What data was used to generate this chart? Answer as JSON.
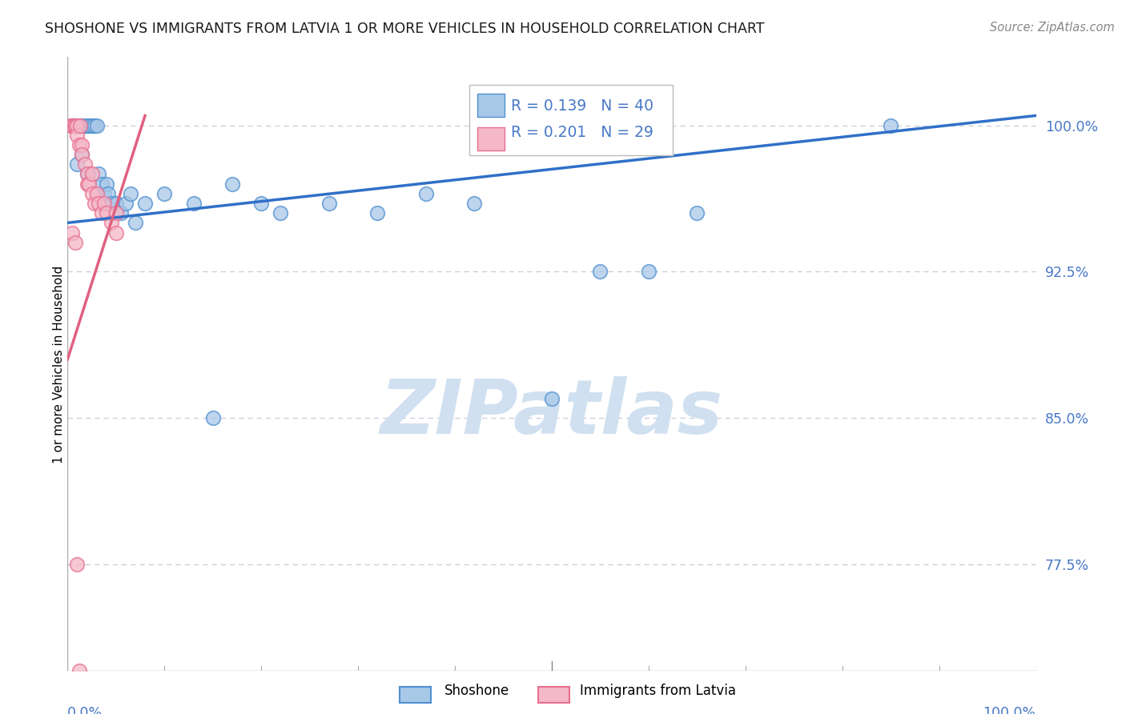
{
  "title": "SHOSHONE VS IMMIGRANTS FROM LATVIA 1 OR MORE VEHICLES IN HOUSEHOLD CORRELATION CHART",
  "source": "Source: ZipAtlas.com",
  "ylabel": "1 or more Vehicles in Household",
  "xlim": [
    0.0,
    100.0
  ],
  "ylim": [
    72.0,
    103.5
  ],
  "yticks": [
    77.5,
    85.0,
    92.5,
    100.0
  ],
  "ytick_labels": [
    "77.5%",
    "85.0%",
    "92.5%",
    "100.0%"
  ],
  "blue_R": 0.139,
  "blue_N": 40,
  "pink_R": 0.201,
  "pink_N": 29,
  "legend_label_blue": "Shoshone",
  "legend_label_pink": "Immigrants from Latvia",
  "blue_dot_color": "#a8c8e8",
  "pink_dot_color": "#f4b8c8",
  "blue_edge_color": "#5090d0",
  "pink_edge_color": "#e87090",
  "blue_line_color": "#3070c8",
  "pink_line_color": "#e06080",
  "watermark_color": "#d0e0f0",
  "axis_tick_color": "#4878c8",
  "title_color": "#1a1a1a",
  "source_color": "#888888",
  "grid_color": "#c8c8dc",
  "blue_trend_x": [
    0.0,
    100.0
  ],
  "blue_trend_y": [
    95.0,
    100.5
  ],
  "pink_trend_x": [
    0.0,
    8.0
  ],
  "pink_trend_y": [
    88.0,
    100.5
  ],
  "blue_scatter_x": [
    0.5,
    0.8,
    1.2,
    1.5,
    1.8,
    2.0,
    2.2,
    2.5,
    2.8,
    3.0,
    3.2,
    3.5,
    3.8,
    4.0,
    4.2,
    4.5,
    5.0,
    5.5,
    6.0,
    6.5,
    1.0,
    1.5,
    2.0,
    7.0,
    8.0,
    10.0,
    13.0,
    17.0,
    22.0,
    27.0,
    32.0,
    37.0,
    42.0,
    55.0,
    60.0,
    65.0,
    85.0,
    15.0,
    50.0,
    20.0
  ],
  "blue_scatter_y": [
    100.0,
    100.0,
    100.0,
    100.0,
    100.0,
    100.0,
    100.0,
    100.0,
    100.0,
    100.0,
    97.5,
    97.0,
    96.5,
    97.0,
    96.5,
    96.0,
    96.0,
    95.5,
    96.0,
    96.5,
    98.0,
    98.5,
    97.5,
    95.0,
    96.0,
    96.5,
    96.0,
    97.0,
    95.5,
    96.0,
    95.5,
    96.5,
    96.0,
    92.5,
    92.5,
    95.5,
    100.0,
    85.0,
    86.0,
    96.0
  ],
  "pink_scatter_x": [
    0.3,
    0.5,
    0.7,
    0.8,
    1.0,
    1.0,
    1.2,
    1.3,
    1.5,
    1.5,
    1.8,
    2.0,
    2.0,
    2.2,
    2.5,
    2.5,
    2.8,
    3.0,
    3.2,
    3.5,
    3.8,
    4.0,
    4.5,
    5.0,
    5.0,
    0.5,
    0.8,
    1.0,
    1.2
  ],
  "pink_scatter_y": [
    100.0,
    100.0,
    100.0,
    100.0,
    100.0,
    99.5,
    99.0,
    100.0,
    99.0,
    98.5,
    98.0,
    97.5,
    97.0,
    97.0,
    96.5,
    97.5,
    96.0,
    96.5,
    96.0,
    95.5,
    96.0,
    95.5,
    95.0,
    95.5,
    94.5,
    94.5,
    94.0,
    77.5,
    72.0
  ]
}
